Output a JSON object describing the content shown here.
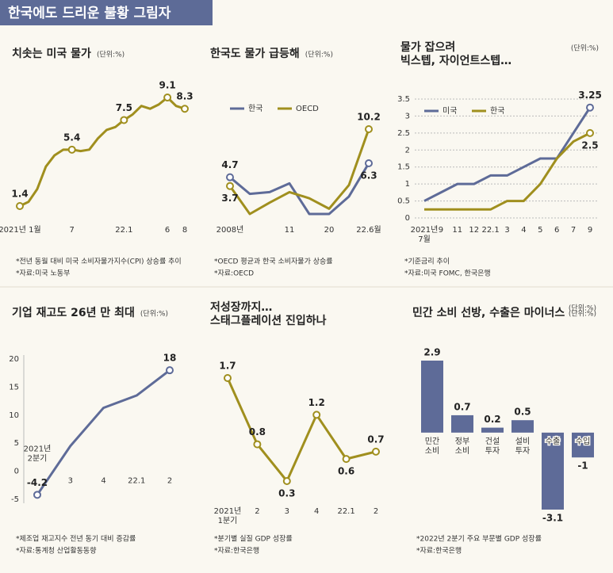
{
  "header": {
    "title": "한국에도 드리운 불황 그림자"
  },
  "chart_data": [
    {
      "type": "line",
      "title": "치솟는 미국 물가",
      "unit": "(단위:%)",
      "color": "#a08f1e",
      "categories": [
        "2021년 1월",
        null,
        null,
        null,
        null,
        null,
        "7",
        null,
        null,
        null,
        null,
        null,
        "22.1",
        null,
        null,
        null,
        null,
        "6",
        null,
        "8"
      ],
      "values": [
        1.4,
        1.7,
        2.6,
        4.2,
        5.0,
        5.4,
        5.4,
        5.3,
        5.4,
        6.2,
        6.8,
        7.0,
        7.5,
        7.9,
        8.5,
        8.3,
        8.6,
        9.1,
        8.5,
        8.3
      ],
      "annotated": [
        0,
        6,
        12,
        17,
        19
      ],
      "notes": [
        "*전년 동월 대비 미국 소비자물가지수(CPI) 상승률 추이",
        "*자료:미국 노동부"
      ]
    },
    {
      "type": "line",
      "title": "한국도 물가 급등해",
      "unit": "(단위:%)",
      "legend": "top-left",
      "categories": [
        "2008년",
        null,
        null,
        "11",
        null,
        "20",
        null,
        "22.6월"
      ],
      "series": [
        {
          "name": "한국",
          "color": "#5e6b98",
          "values": [
            4.7,
            2.8,
            3.0,
            4.0,
            0.5,
            0.5,
            2.5,
            6.3
          ],
          "annotated": [
            0,
            7
          ]
        },
        {
          "name": "OECD",
          "color": "#a08f1e",
          "values": [
            3.7,
            0.5,
            1.8,
            3.0,
            2.3,
            1.1,
            3.8,
            10.2
          ],
          "annotated": [
            0,
            7
          ]
        }
      ],
      "notes": [
        "*OECD 평균과 한국 소비자물가 상승률",
        "*자료:OECD"
      ]
    },
    {
      "type": "line",
      "title": "물가 잡으려\n빅스텝, 자이언트스텝…",
      "unit": "(단위:%)",
      "legend": "top-left",
      "grid": true,
      "categories": [
        "2021년\n7월",
        "9",
        "11",
        "12",
        "22.1",
        "3",
        "4",
        "5",
        "6",
        "7",
        "9"
      ],
      "ylim": [
        0,
        3.5
      ],
      "yticks": [
        0,
        0.5,
        1,
        1.5,
        2,
        2.5,
        3,
        3.5
      ],
      "series": [
        {
          "name": "미국",
          "color": "#5e6b98",
          "values": [
            0.5,
            0.75,
            1.0,
            1.0,
            1.25,
            1.25,
            1.5,
            1.75,
            1.75,
            2.5,
            3.25
          ],
          "annotated": [
            10
          ]
        },
        {
          "name": "한국",
          "color": "#a08f1e",
          "values": [
            0.25,
            0.25,
            0.25,
            0.25,
            0.25,
            0.5,
            0.5,
            1.0,
            1.75,
            2.25,
            2.5
          ],
          "annotated": [
            10
          ]
        }
      ],
      "notes": [
        "*기준금리 추이",
        "*자료:미국 FOMC, 한국은행"
      ]
    },
    {
      "type": "line",
      "title": "기업 재고도 26년 만 최대",
      "unit": "(단위:%)",
      "color": "#5e6b98",
      "categories": [
        "2021년\n2분기",
        "3",
        "4",
        "22.1",
        "2"
      ],
      "ylim": [
        -5,
        20
      ],
      "yticks": [
        -5,
        0,
        5,
        10,
        15,
        20
      ],
      "values": [
        -4.2,
        4.5,
        11.3,
        13.5,
        18
      ],
      "annotated": [
        0,
        4
      ],
      "notes": [
        "*제조업 재고지수 전년 동기 대비 증감률",
        "*자료:통계청 산업활동동향"
      ]
    },
    {
      "type": "line",
      "title": "저성장까지…\n스태그플레이션 진입하나",
      "unit": "(단위:%)",
      "color": "#a08f1e",
      "categories": [
        "2021년\n1분기",
        "2",
        "3",
        "4",
        "22.1",
        "2"
      ],
      "values": [
        1.7,
        0.8,
        0.3,
        1.2,
        0.6,
        0.7
      ],
      "annotated": [
        0,
        1,
        2,
        3,
        4,
        5
      ],
      "notes": [
        "*분기별 실질 GDP 성장률",
        "*자료:한국은행"
      ]
    },
    {
      "type": "bar",
      "title": "민간 소비 선방, 수출은 마이너스",
      "unit": "(단위:%)",
      "color": "#5e6b98",
      "categories": [
        "민간\n소비",
        "정부\n소비",
        "건설\n투자",
        "설비\n투자",
        "수출",
        "수입"
      ],
      "values": [
        2.9,
        0.7,
        0.2,
        0.5,
        -3.1,
        -1
      ],
      "notes": [
        "*2022년 2분기 주요 부문별 GDP 성장률",
        "*자료:한국은행"
      ]
    }
  ]
}
